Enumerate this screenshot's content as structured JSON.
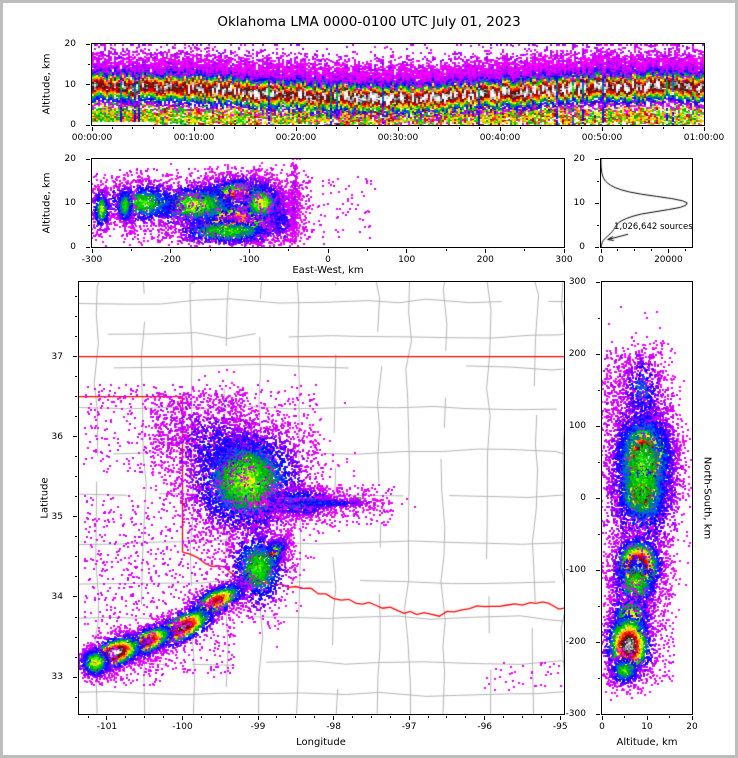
{
  "chart_data": {
    "type": "heatmap",
    "title": "Oklahoma LMA 0000-0100 UTC July 01, 2023",
    "annotation": {
      "sources_label": "1,026,642 sources"
    },
    "palette": {
      "stops": [
        [
          0.0,
          255,
          0,
          255
        ],
        [
          0.1,
          190,
          0,
          255
        ],
        [
          0.18,
          64,
          0,
          255
        ],
        [
          0.26,
          0,
          0,
          255
        ],
        [
          0.34,
          0,
          90,
          255
        ],
        [
          0.42,
          0,
          170,
          0
        ],
        [
          0.5,
          0,
          230,
          0
        ],
        [
          0.57,
          255,
          255,
          0
        ],
        [
          0.66,
          255,
          150,
          0
        ],
        [
          0.74,
          255,
          0,
          0
        ],
        [
          0.82,
          140,
          0,
          0
        ],
        [
          0.87,
          35,
          35,
          35
        ],
        [
          0.93,
          165,
          165,
          165
        ],
        [
          1.0,
          255,
          255,
          255
        ]
      ]
    },
    "panels": {
      "time": {
        "type": "heatmap",
        "xlabel": "",
        "ylabel": "Altitude, km",
        "xlim": [
          0,
          3600
        ],
        "ylim": [
          0,
          20
        ],
        "seed": 11,
        "xticks": [
          {
            "v": 0,
            "label": "00:00:00"
          },
          {
            "v": 600,
            "label": "00:10:00"
          },
          {
            "v": 1200,
            "label": "00:20:00"
          },
          {
            "v": 1800,
            "label": "00:30:00"
          },
          {
            "v": 2400,
            "label": "00:40:00"
          },
          {
            "v": 3000,
            "label": "00:50:00"
          },
          {
            "v": 3600,
            "label": "01:00:00"
          }
        ],
        "yticks": [
          {
            "v": 0,
            "label": "0"
          },
          {
            "v": 10,
            "label": "10"
          },
          {
            "v": 20,
            "label": "20"
          }
        ],
        "xminor": 120,
        "yminor": 5
      },
      "ew": {
        "type": "heatmap",
        "xlabel": "East-West, km",
        "ylabel": "Altitude, km",
        "xlim": [
          -300,
          300
        ],
        "ylim": [
          0,
          20
        ],
        "seed": 21,
        "xticks": [
          {
            "v": -300,
            "label": "-300"
          },
          {
            "v": -200,
            "label": "-200"
          },
          {
            "v": -100,
            "label": "-100"
          },
          {
            "v": 0,
            "label": "0"
          },
          {
            "v": 100,
            "label": "100"
          },
          {
            "v": 200,
            "label": "200"
          },
          {
            "v": 300,
            "label": "300"
          }
        ],
        "yticks": [
          {
            "v": 0,
            "label": "0"
          },
          {
            "v": 10,
            "label": "10"
          },
          {
            "v": 20,
            "label": "20"
          }
        ],
        "xminor": 50,
        "yminor": 5,
        "clusters": [
          {
            "x": -112,
            "y": 9.5,
            "sx": 28,
            "sy": 3.2,
            "n": 5200,
            "i": 1.02
          },
          {
            "x": -118,
            "y": 6.0,
            "sx": 35,
            "sy": 2.6,
            "n": 1800,
            "i": 0.72
          },
          {
            "x": -85,
            "y": 10.0,
            "sx": 15,
            "sy": 2.5,
            "n": 800,
            "i": 0.6
          },
          {
            "x": -170,
            "y": 9.5,
            "sx": 35,
            "sy": 2.8,
            "n": 1200,
            "i": 0.55
          },
          {
            "x": -235,
            "y": 10.0,
            "sx": 30,
            "sy": 2.6,
            "n": 1000,
            "i": 0.5
          },
          {
            "x": -288,
            "y": 8.5,
            "sx": 6,
            "sy": 2.5,
            "n": 350,
            "i": 0.55
          },
          {
            "x": -258,
            "y": 9.5,
            "sx": 6,
            "sy": 2.5,
            "n": 300,
            "i": 0.5
          },
          {
            "x": -130,
            "y": 3.5,
            "sx": 40,
            "sy": 1.8,
            "n": 700,
            "i": 0.5
          },
          {
            "x": -60,
            "y": 6.0,
            "sx": 12,
            "sy": 3.0,
            "n": 250,
            "i": 0.25
          },
          {
            "x": -43,
            "y": 10.0,
            "sx": 3,
            "sy": 6.5,
            "n": 220,
            "i": 0.12
          }
        ],
        "scatters": [
          {
            "x0": -300,
            "x1": -20,
            "y0": 1,
            "y1": 18,
            "n": 700,
            "tmax": 0.12
          },
          {
            "x0": -20,
            "x1": 60,
            "y0": 2,
            "y1": 16,
            "n": 60,
            "tmax": 0.1
          }
        ]
      },
      "hist": {
        "type": "line",
        "xlabel": "",
        "ylabel": "",
        "xlim": [
          0,
          27000
        ],
        "ylim": [
          0,
          20
        ],
        "xticks": [
          {
            "v": 0,
            "label": "0"
          },
          {
            "v": 20000,
            "label": "20000"
          }
        ],
        "yticks": [
          {
            "v": 0,
            "label": "0"
          },
          {
            "v": 10,
            "label": "10"
          },
          {
            "v": 20,
            "label": "20"
          }
        ],
        "xminor": 5000,
        "yminor": 5,
        "profile": [
          [
            0,
            50
          ],
          [
            0.5,
            150
          ],
          [
            1,
            350
          ],
          [
            1.5,
            700
          ],
          [
            2,
            1300
          ],
          [
            2.5,
            2000
          ],
          [
            3,
            2700
          ],
          [
            3.5,
            3300
          ],
          [
            4,
            3800
          ],
          [
            4.5,
            4200
          ],
          [
            5,
            4600
          ],
          [
            5.5,
            5200
          ],
          [
            6,
            6200
          ],
          [
            6.5,
            7600
          ],
          [
            7,
            9500
          ],
          [
            7.5,
            12000
          ],
          [
            8,
            16000
          ],
          [
            8.5,
            20000
          ],
          [
            9,
            23500
          ],
          [
            9.5,
            25200
          ],
          [
            10,
            25600
          ],
          [
            10.5,
            24200
          ],
          [
            11,
            21000
          ],
          [
            11.5,
            16500
          ],
          [
            12,
            12000
          ],
          [
            12.5,
            8500
          ],
          [
            13,
            6000
          ],
          [
            13.5,
            4200
          ],
          [
            14,
            2900
          ],
          [
            14.5,
            2000
          ],
          [
            15,
            1300
          ],
          [
            15.5,
            850
          ],
          [
            16,
            550
          ],
          [
            16.5,
            350
          ],
          [
            17,
            220
          ],
          [
            17.5,
            130
          ],
          [
            18,
            70
          ],
          [
            18.5,
            35
          ],
          [
            19,
            15
          ],
          [
            19.5,
            5
          ],
          [
            20,
            0
          ]
        ]
      },
      "map": {
        "type": "heatmap",
        "xlabel": "Longitude",
        "ylabel": "Latitude",
        "xlim": [
          -101.37,
          -94.95
        ],
        "ylim": [
          32.54,
          37.93
        ],
        "seed": 31,
        "xticks": [
          {
            "v": -101,
            "label": "-101"
          },
          {
            "v": -100,
            "label": "-100"
          },
          {
            "v": -99,
            "label": "-99"
          },
          {
            "v": -98,
            "label": "-98"
          },
          {
            "v": -97,
            "label": "-97"
          },
          {
            "v": -96,
            "label": "-96"
          },
          {
            "v": -95,
            "label": "-95"
          }
        ],
        "yticks": [
          {
            "v": 33,
            "label": "33"
          },
          {
            "v": 34,
            "label": "34"
          },
          {
            "v": 35,
            "label": "35"
          },
          {
            "v": 36,
            "label": "36"
          },
          {
            "v": 37,
            "label": "37"
          }
        ],
        "xminor": 0.25,
        "yminor": 0.25,
        "overlay": {
          "state_color": "#ff0000",
          "county_color": "#b4b4b4",
          "lat37": 37.0,
          "lat365": 36.5,
          "lon100": -100.0,
          "lon100_south": 34.56,
          "station_marker": {
            "lon": -97.68,
            "lat": 35.2,
            "color": "#00b400"
          },
          "red_river": [
            [
              -100,
              34.56
            ],
            [
              -99.7,
              34.42
            ],
            [
              -99.45,
              34.38
            ],
            [
              -99.2,
              34.17
            ],
            [
              -98.9,
              34.18
            ],
            [
              -98.6,
              34.12
            ],
            [
              -98.3,
              34.11
            ],
            [
              -98.0,
              33.98
            ],
            [
              -97.7,
              33.92
            ],
            [
              -97.45,
              33.9
            ],
            [
              -97.15,
              33.83
            ],
            [
              -96.9,
              33.78
            ],
            [
              -96.6,
              33.76
            ],
            [
              -96.3,
              33.84
            ],
            [
              -96.0,
              33.88
            ],
            [
              -95.7,
              33.9
            ],
            [
              -95.4,
              33.93
            ],
            [
              -95.15,
              33.92
            ],
            [
              -94.95,
              33.86
            ]
          ]
        },
        "clusters": [
          {
            "x": -99.18,
            "y": 35.52,
            "sx": 0.16,
            "sy": 0.2,
            "n": 6000,
            "i": 1.03
          },
          {
            "x": -99.35,
            "y": 35.6,
            "sx": 0.08,
            "sy": 0.09,
            "n": 1500,
            "i": 0.98
          },
          {
            "x": -99.0,
            "y": 35.22,
            "sx": 0.1,
            "sy": 0.1,
            "n": 2200,
            "i": 0.95
          },
          {
            "x": -99.15,
            "y": 35.45,
            "sx": 0.42,
            "sy": 0.38,
            "n": 4000,
            "i": 0.55
          },
          {
            "x": -98.45,
            "y": 35.18,
            "sx": 0.28,
            "sy": 0.1,
            "n": 900,
            "i": 0.4
          },
          {
            "x": -98.15,
            "y": 35.17,
            "sx": 0.4,
            "sy": 0.035,
            "n": 500,
            "i": 0.3
          },
          {
            "x": -99.6,
            "y": 35.9,
            "sx": 0.35,
            "sy": 0.3,
            "n": 700,
            "i": 0.25
          },
          {
            "x": -98.9,
            "y": 34.45,
            "sx": 0.18,
            "sy": 0.07,
            "n": 2600,
            "i": 1.0,
            "rot": 45
          },
          {
            "x": -99.0,
            "y": 34.35,
            "sx": 0.22,
            "sy": 0.28,
            "n": 1200,
            "i": 0.5
          },
          {
            "x": -99.55,
            "y": 33.95,
            "sx": 0.22,
            "sy": 0.09,
            "n": 1100,
            "i": 0.8,
            "rot": 25
          },
          {
            "x": -100.0,
            "y": 33.62,
            "sx": 0.25,
            "sy": 0.1,
            "n": 1300,
            "i": 0.9,
            "rot": 25
          },
          {
            "x": -100.45,
            "y": 33.45,
            "sx": 0.2,
            "sy": 0.09,
            "n": 1100,
            "i": 0.85,
            "rot": 25
          },
          {
            "x": -100.9,
            "y": 33.3,
            "sx": 0.22,
            "sy": 0.1,
            "n": 1400,
            "i": 1.0,
            "rot": 20
          },
          {
            "x": -101.15,
            "y": 33.18,
            "sx": 0.12,
            "sy": 0.1,
            "n": 500,
            "i": 0.6
          }
        ],
        "scatters": [
          {
            "x0": -101.3,
            "x1": -98.2,
            "y0": 35.55,
            "y1": 36.65,
            "n": 600,
            "tmax": 0.1
          },
          {
            "x0": -100.4,
            "x1": -99.2,
            "y0": 35.8,
            "y1": 36.55,
            "n": 500,
            "tmax": 0.14
          },
          {
            "x0": -101.3,
            "x1": -99.3,
            "y0": 33.0,
            "y1": 35.3,
            "n": 800,
            "tmax": 0.1
          },
          {
            "x0": -98.6,
            "x1": -97.2,
            "y0": 34.9,
            "y1": 35.4,
            "n": 250,
            "tmax": 0.1
          },
          {
            "x0": -101.3,
            "x1": -100.3,
            "y0": 32.9,
            "y1": 33.3,
            "n": 150,
            "tmax": 0.1
          },
          {
            "x0": -96.0,
            "x1": -94.9,
            "y0": 32.8,
            "y1": 33.2,
            "n": 40,
            "tmax": 0.08
          }
        ]
      },
      "ns": {
        "type": "heatmap",
        "xlabel": "Altitude, km",
        "ylabel": "North-South, km",
        "xlim": [
          0,
          20
        ],
        "ylim": [
          -300,
          300
        ],
        "seed": 41,
        "xticks": [
          {
            "v": 0,
            "label": "0"
          },
          {
            "v": 10,
            "label": "10"
          },
          {
            "v": 20,
            "label": "20"
          }
        ],
        "yticks": [
          {
            "v": 300,
            "label": "300"
          },
          {
            "v": 200,
            "label": "200"
          },
          {
            "v": 100,
            "label": "100"
          },
          {
            "v": 0,
            "label": "0"
          },
          {
            "v": -100,
            "label": "-100"
          },
          {
            "v": -200,
            "label": "-200"
          },
          {
            "v": -300,
            "label": "-300"
          }
        ],
        "xminor": 5,
        "yminor": 50,
        "clusters": [
          {
            "x": 9.5,
            "y": 55,
            "sx": 3.2,
            "sy": 30,
            "n": 4200,
            "i": 1.02
          },
          {
            "x": 9.0,
            "y": 5,
            "sx": 2.8,
            "sy": 18,
            "n": 1800,
            "i": 0.92
          },
          {
            "x": 9.0,
            "y": 35,
            "sx": 4.5,
            "sy": 70,
            "n": 2600,
            "i": 0.5
          },
          {
            "x": 9.0,
            "y": 150,
            "sx": 2.5,
            "sy": 30,
            "n": 350,
            "i": 0.35
          },
          {
            "x": 8.0,
            "y": -95,
            "sx": 2.8,
            "sy": 22,
            "n": 2000,
            "i": 0.97
          },
          {
            "x": 7.5,
            "y": -120,
            "sx": 3.0,
            "sy": 25,
            "n": 700,
            "i": 0.5
          },
          {
            "x": 6.5,
            "y": -165,
            "sx": 2.6,
            "sy": 18,
            "n": 800,
            "i": 0.6
          },
          {
            "x": 6.0,
            "y": -205,
            "sx": 2.8,
            "sy": 25,
            "n": 1500,
            "i": 0.95
          },
          {
            "x": 5.0,
            "y": -240,
            "sx": 2.0,
            "sy": 12,
            "n": 400,
            "i": 0.5
          }
        ],
        "scatters": [
          {
            "x0": 1,
            "x1": 16,
            "y0": -260,
            "y1": 210,
            "n": 900,
            "tmax": 0.12
          },
          {
            "x0": 0.5,
            "x1": 12,
            "y0": 100,
            "y1": 200,
            "n": 300,
            "tmax": 0.15
          }
        ]
      }
    }
  }
}
